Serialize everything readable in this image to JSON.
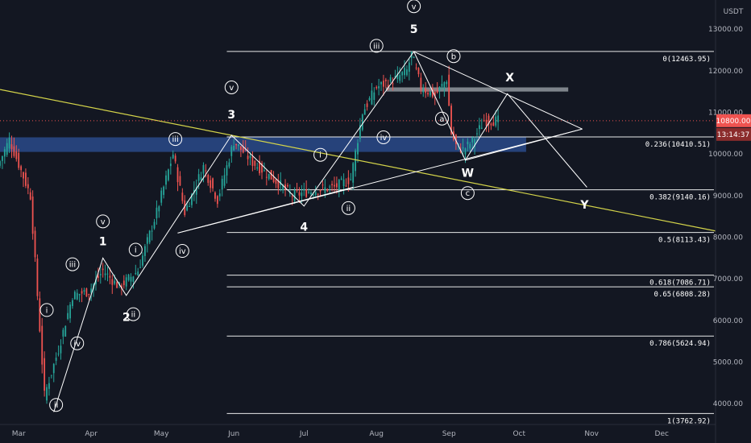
{
  "chart_data": {
    "type": "candlestick",
    "symbol_currency": "USDT",
    "title": "",
    "price_axis": {
      "range": [
        3500,
        13700
      ],
      "ticks": [
        "13000.00",
        "12000.00",
        "11000.00",
        "10000.00",
        "9000.00",
        "8000.00",
        "7000.00",
        "6000.00",
        "5000.00",
        "4000.00"
      ],
      "tick_values": [
        13000,
        12000,
        11000,
        10000,
        9000,
        8000,
        7000,
        6000,
        5000,
        4000
      ]
    },
    "time_axis": {
      "range": [
        "2020-02-22",
        "2020-12-24"
      ],
      "ticks": [
        "Mar",
        "Apr",
        "May",
        "Jun",
        "Jul",
        "Aug",
        "Sep",
        "Oct",
        "Nov",
        "Dec"
      ],
      "tick_dates": [
        "2020-03-01",
        "2020-04-01",
        "2020-05-01",
        "2020-06-01",
        "2020-07-01",
        "2020-08-01",
        "2020-09-01",
        "2020-10-01",
        "2020-11-01",
        "2020-12-01"
      ]
    },
    "current_price": {
      "value": 10800,
      "label": "10800.00",
      "countdown": "13:14:37"
    },
    "colors": {
      "up": "#26a69a",
      "down": "#ef5350",
      "background": "#131722",
      "grid_levels": "#ffffff",
      "trendline": "#d4d44a",
      "zone": "#2a4a8a",
      "target_box": "#9aa0a6",
      "price_badge": "#ef5350",
      "countdown_badge": "#8b2c2c"
    },
    "anchors": [
      [
        "2020-02-22",
        9700
      ],
      [
        "2020-02-27",
        10350
      ],
      [
        "2020-03-07",
        9000
      ],
      [
        "2020-03-12",
        5000
      ],
      [
        "2020-03-13",
        4200
      ],
      [
        "2020-03-19",
        5300
      ],
      [
        "2020-03-25",
        6600
      ],
      [
        "2020-04-01",
        6700
      ],
      [
        "2020-04-07",
        7200
      ],
      [
        "2020-04-14",
        6800
      ],
      [
        "2020-04-22",
        7200
      ],
      [
        "2020-04-30",
        8600
      ],
      [
        "2020-05-07",
        10000
      ],
      [
        "2020-05-12",
        8600
      ],
      [
        "2020-05-20",
        9700
      ],
      [
        "2020-05-26",
        8900
      ],
      [
        "2020-06-02",
        10300
      ],
      [
        "2020-06-10",
        9800
      ],
      [
        "2020-06-20",
        9350
      ],
      [
        "2020-06-27",
        9000
      ],
      [
        "2020-07-04",
        9100
      ],
      [
        "2020-07-15",
        9200
      ],
      [
        "2020-07-22",
        9400
      ],
      [
        "2020-07-27",
        11000
      ],
      [
        "2020-08-02",
        11600
      ],
      [
        "2020-08-10",
        11800
      ],
      [
        "2020-08-15",
        12000
      ],
      [
        "2020-08-17",
        12400
      ],
      [
        "2020-08-21",
        11600
      ],
      [
        "2020-08-27",
        11400
      ],
      [
        "2020-09-01",
        11800
      ],
      [
        "2020-09-03",
        10500
      ],
      [
        "2020-09-05",
        10200
      ],
      [
        "2020-09-08",
        10100
      ],
      [
        "2020-09-12",
        10300
      ],
      [
        "2020-09-17",
        10800
      ],
      [
        "2020-09-22",
        10800
      ]
    ],
    "fib_levels": [
      {
        "label": "0(12463.95)",
        "value": 12463.95
      },
      {
        "label": "0.236(10410.51)",
        "value": 10410.51
      },
      {
        "label": "0.382(9140.16)",
        "value": 9140.16
      },
      {
        "label": "0.5(8113.43)",
        "value": 8113.43
      },
      {
        "label": "0.618(7086.71)",
        "value": 7086.71
      },
      {
        "label": "0.65(6808.28)",
        "value": 6808.28
      },
      {
        "label": "0.786(5624.94)",
        "value": 5624.94
      },
      {
        "label": "1(3762.92)",
        "value": 3762.92
      }
    ],
    "zone": {
      "from": 10050,
      "to": 10400,
      "start": "2020-02-22",
      "end": "2020-10-04"
    },
    "target_box": {
      "from": 11500,
      "to": 11600,
      "start": "2020-08-05",
      "end": "2020-10-22"
    },
    "trendline": [
      [
        "2020-02-22",
        11550
      ],
      [
        "2020-12-24",
        8150
      ]
    ],
    "wave_path_primary": [
      [
        "2020-03-16",
        3800
      ],
      [
        "2020-04-06",
        7500
      ],
      [
        "2020-04-16",
        6600
      ],
      [
        "2020-05-31",
        10450
      ],
      [
        "2020-07-01",
        8750
      ],
      [
        "2020-08-17",
        12460
      ],
      [
        "2020-09-08",
        9850
      ],
      [
        "2020-09-26",
        11450
      ],
      [
        "2020-10-30",
        9200
      ]
    ],
    "wave_path_secondary": [
      [
        "2020-05-08",
        8100
      ],
      [
        "2020-07-22",
        9200
      ]
    ],
    "wave_channel": [
      [
        "2020-05-08",
        8100
      ],
      [
        "2020-10-28",
        10600
      ]
    ],
    "wave_channel_top": [
      [
        "2020-08-17",
        12460
      ],
      [
        "2020-10-28",
        10600
      ]
    ],
    "wave_wedge_bottom": [
      [
        "2020-09-08",
        9850
      ],
      [
        "2020-10-28",
        10600
      ]
    ],
    "labels": [
      {
        "text": "1",
        "x": "2020-04-06",
        "y": 7900,
        "style": "plain"
      },
      {
        "text": "v",
        "x": "2020-04-06",
        "y": 8380,
        "style": "circle"
      },
      {
        "text": "2",
        "x": "2020-04-16",
        "y": 6080,
        "style": "plain"
      },
      {
        "text": "3",
        "x": "2020-05-31",
        "y": 10950,
        "style": "plain"
      },
      {
        "text": "v",
        "x": "2020-05-31",
        "y": 11600,
        "style": "circle"
      },
      {
        "text": "4",
        "x": "2020-07-01",
        "y": 8250,
        "style": "plain"
      },
      {
        "text": "5",
        "x": "2020-08-17",
        "y": 13000,
        "style": "plain"
      },
      {
        "text": "v",
        "x": "2020-08-17",
        "y": 13550,
        "style": "circle"
      },
      {
        "text": "i",
        "x": "2020-03-13",
        "y": 6250,
        "style": "circle"
      },
      {
        "text": "ii",
        "x": "2020-03-17",
        "y": 3970,
        "style": "circle"
      },
      {
        "text": "iii",
        "x": "2020-03-24",
        "y": 7350,
        "style": "circle"
      },
      {
        "text": "iv",
        "x": "2020-03-26",
        "y": 5450,
        "style": "circle"
      },
      {
        "text": "i",
        "x": "2020-04-20",
        "y": 7700,
        "style": "circle"
      },
      {
        "text": "ii",
        "x": "2020-04-19",
        "y": 6150,
        "style": "circle"
      },
      {
        "text": "iii",
        "x": "2020-05-07",
        "y": 10360,
        "style": "circle"
      },
      {
        "text": "iv",
        "x": "2020-05-10",
        "y": 7670,
        "style": "circle"
      },
      {
        "text": "i",
        "x": "2020-07-08",
        "y": 9980,
        "style": "circle"
      },
      {
        "text": "ii",
        "x": "2020-07-20",
        "y": 8700,
        "style": "circle"
      },
      {
        "text": "iii",
        "x": "2020-08-01",
        "y": 12600,
        "style": "circle"
      },
      {
        "text": "iv",
        "x": "2020-08-04",
        "y": 10400,
        "style": "circle"
      },
      {
        "text": "a",
        "x": "2020-08-29",
        "y": 10850,
        "style": "circle"
      },
      {
        "text": "b",
        "x": "2020-09-03",
        "y": 12350,
        "style": "circle"
      },
      {
        "text": "c",
        "x": "2020-09-09",
        "y": 9060,
        "style": "circle"
      },
      {
        "text": "W",
        "x": "2020-09-09",
        "y": 9550,
        "style": "plain"
      },
      {
        "text": "X",
        "x": "2020-09-27",
        "y": 11840,
        "style": "plain"
      },
      {
        "text": "Y",
        "x": "2020-10-29",
        "y": 8780,
        "style": "plain"
      }
    ]
  }
}
